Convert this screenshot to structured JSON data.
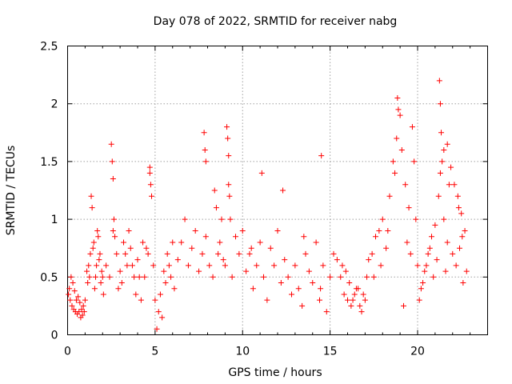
{
  "chart_data": {
    "type": "scatter",
    "title": "Day 078 of 2022, SRMTID for receiver nabg",
    "xlabel": "GPS time / hours",
    "ylabel": "SRMTID / TECUs",
    "xlim": [
      0,
      24
    ],
    "ylim": [
      0,
      2.5
    ],
    "x_ticks": [
      0,
      5,
      10,
      15,
      20
    ],
    "x_tick_labels": [
      "0",
      "5",
      "10",
      "15",
      "20"
    ],
    "y_ticks": [
      0,
      0.5,
      1,
      1.5,
      2,
      2.5
    ],
    "y_tick_labels": [
      "0",
      "0.5",
      "1",
      "1.5",
      "2",
      "2.5"
    ],
    "grid": true,
    "marker": "plus",
    "series": [
      {
        "name": "SRMTID",
        "color": "#ff0000",
        "x": [
          0.05,
          0.15,
          0.25,
          0.35,
          0.45,
          0.55,
          0.65,
          0.75,
          0.85,
          0.95,
          0.1,
          0.3,
          0.5,
          0.7,
          0.9,
          0.2,
          0.4,
          0.6,
          0.8,
          1.0,
          1.1,
          1.2,
          1.3,
          1.4,
          1.5,
          1.6,
          1.7,
          1.8,
          1.9,
          2.0,
          1.35,
          1.45,
          1.55,
          1.65,
          1.75,
          1.85,
          1.95,
          1.25,
          1.15,
          2.05,
          2.2,
          2.4,
          2.6,
          2.8,
          3.0,
          3.2,
          3.4,
          3.6,
          3.8,
          4.0,
          2.5,
          2.55,
          2.6,
          2.65,
          2.7,
          2.9,
          3.1,
          3.3,
          3.5,
          3.7,
          3.9,
          4.1,
          4.3,
          4.5,
          4.7,
          4.9,
          4.7,
          4.75,
          4.8,
          4.6,
          4.4,
          4.2,
          5.0,
          5.2,
          5.4,
          5.6,
          5.8,
          6.0,
          5.1,
          5.3,
          5.5,
          5.7,
          5.9,
          6.1,
          6.3,
          6.5,
          6.7,
          6.9,
          7.1,
          7.3,
          7.5,
          7.7,
          7.9,
          8.1,
          8.3,
          8.5,
          8.7,
          8.9,
          7.8,
          7.85,
          7.9,
          8.4,
          8.6,
          8.8,
          9.0,
          9.2,
          9.4,
          9.6,
          9.8,
          9.1,
          9.15,
          9.2,
          9.25,
          9.3,
          10.0,
          10.2,
          10.4,
          10.6,
          10.8,
          11.0,
          11.2,
          11.4,
          11.6,
          11.8,
          12.0,
          12.2,
          12.4,
          12.6,
          12.8,
          10.5,
          11.1,
          12.3,
          13.0,
          13.2,
          13.4,
          13.6,
          13.8,
          14.0,
          14.2,
          14.4,
          14.6,
          14.8,
          15.0,
          15.2,
          13.5,
          14.5,
          14.45,
          15.4,
          15.6,
          15.8,
          16.0,
          16.2,
          16.4,
          16.6,
          16.8,
          17.0,
          16.1,
          16.3,
          16.5,
          16.7,
          16.9,
          17.1,
          15.9,
          15.7,
          17.2,
          17.4,
          17.6,
          17.8,
          18.0,
          18.2,
          18.4,
          18.6,
          18.8,
          19.0,
          17.5,
          17.9,
          18.3,
          18.7,
          18.85,
          18.9,
          19.1,
          19.3,
          19.5,
          19.7,
          19.9,
          19.2,
          19.4,
          19.6,
          19.8,
          20.0,
          20.2,
          20.4,
          20.6,
          20.8,
          21.0,
          20.1,
          20.3,
          20.5,
          20.7,
          20.9,
          21.1,
          21.3,
          21.5,
          21.7,
          21.2,
          21.4,
          21.6,
          21.8,
          22.0,
          21.25,
          21.3,
          21.35,
          21.5,
          21.7,
          21.9,
          22.1,
          22.3,
          22.5,
          22.7,
          22.2,
          22.4,
          22.6,
          22.8,
          22.35,
          22.55
        ],
        "y": [
          0.35,
          0.3,
          0.25,
          0.22,
          0.2,
          0.18,
          0.2,
          0.15,
          0.17,
          0.2,
          0.4,
          0.45,
          0.3,
          0.28,
          0.25,
          0.5,
          0.38,
          0.33,
          0.22,
          0.3,
          0.55,
          0.6,
          0.7,
          1.1,
          0.8,
          0.5,
          0.9,
          0.65,
          0.45,
          0.5,
          1.2,
          0.75,
          0.4,
          0.6,
          0.85,
          0.7,
          0.55,
          0.5,
          0.45,
          0.35,
          0.6,
          0.5,
          0.9,
          0.7,
          0.55,
          0.8,
          0.6,
          0.75,
          0.5,
          0.65,
          1.65,
          1.5,
          1.35,
          1.0,
          0.85,
          0.4,
          0.45,
          0.7,
          0.9,
          0.6,
          0.35,
          0.5,
          0.8,
          0.75,
          1.45,
          0.6,
          1.4,
          1.3,
          1.2,
          0.7,
          0.5,
          0.3,
          0.3,
          0.2,
          0.15,
          0.45,
          0.6,
          0.8,
          0.05,
          0.35,
          0.55,
          0.7,
          0.5,
          0.4,
          0.65,
          0.8,
          1.0,
          0.6,
          0.75,
          0.9,
          0.55,
          0.7,
          0.85,
          0.6,
          0.5,
          1.1,
          0.8,
          0.65,
          1.75,
          1.6,
          1.5,
          1.25,
          0.7,
          1.0,
          0.6,
          1.3,
          0.5,
          0.85,
          0.7,
          1.8,
          1.7,
          1.55,
          1.2,
          1.0,
          0.9,
          0.55,
          0.7,
          0.4,
          0.6,
          0.8,
          0.5,
          0.3,
          0.75,
          0.6,
          0.9,
          0.45,
          0.65,
          0.5,
          0.35,
          0.75,
          1.4,
          1.25,
          0.6,
          0.4,
          0.25,
          0.7,
          0.55,
          0.45,
          0.8,
          0.3,
          0.6,
          0.2,
          0.5,
          0.7,
          0.85,
          1.55,
          0.4,
          0.65,
          0.5,
          0.35,
          0.3,
          0.25,
          0.35,
          0.4,
          0.2,
          0.3,
          0.45,
          0.3,
          0.4,
          0.25,
          0.35,
          0.5,
          0.55,
          0.6,
          0.65,
          0.7,
          0.85,
          0.9,
          1.0,
          0.75,
          1.2,
          1.5,
          1.7,
          1.9,
          0.5,
          0.6,
          0.9,
          1.4,
          2.05,
          1.95,
          1.6,
          1.3,
          1.1,
          1.8,
          1.0,
          0.25,
          0.8,
          0.7,
          1.5,
          0.6,
          0.4,
          0.55,
          0.7,
          0.85,
          0.95,
          0.3,
          0.45,
          0.6,
          0.75,
          0.5,
          0.65,
          1.4,
          1.0,
          0.8,
          1.2,
          1.5,
          0.55,
          1.3,
          0.7,
          2.2,
          2.0,
          1.75,
          1.6,
          1.65,
          1.45,
          1.3,
          1.2,
          1.05,
          0.9,
          0.6,
          0.75,
          0.45,
          0.55,
          1.1,
          0.85
        ]
      }
    ]
  }
}
